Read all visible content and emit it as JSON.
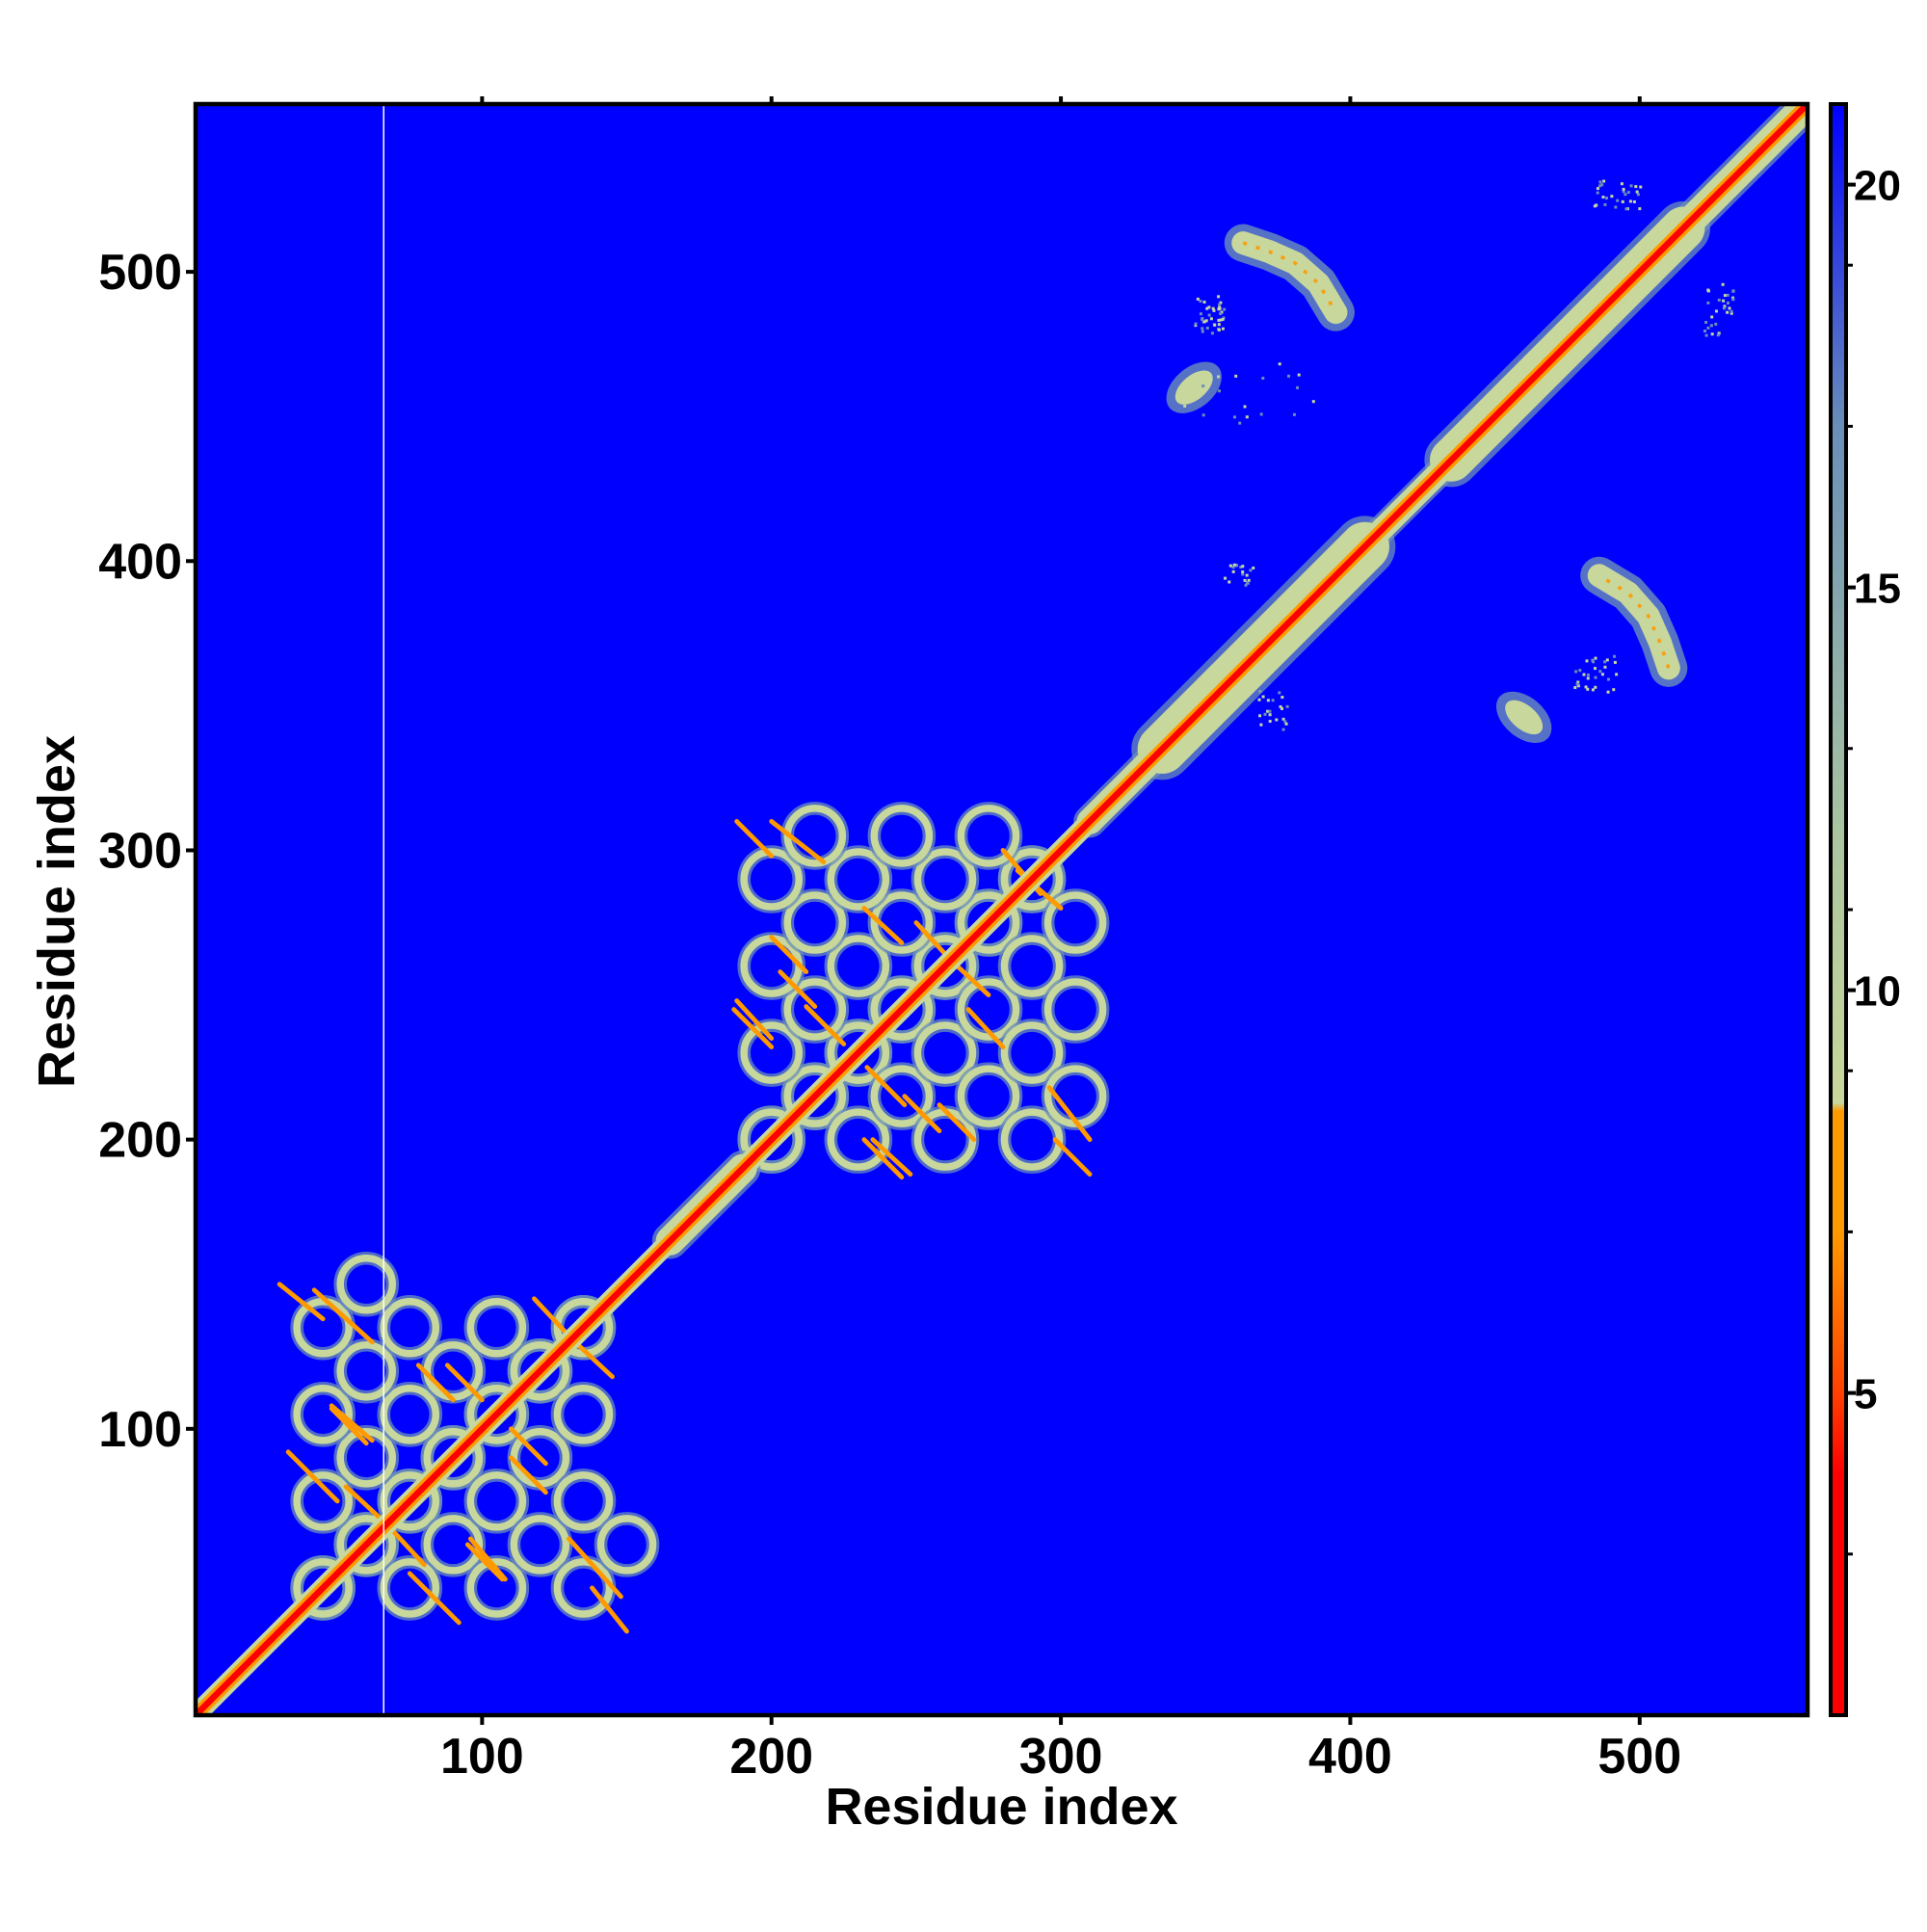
{
  "chart_data": {
    "type": "heatmap",
    "title": "",
    "xlabel": "Residue index",
    "ylabel": "Residue index",
    "xlim": [
      1,
      558
    ],
    "ylim": [
      1,
      558
    ],
    "x_ticks": [
      100,
      200,
      300,
      400,
      500
    ],
    "y_ticks": [
      100,
      200,
      300,
      400,
      500
    ],
    "x_tick_labels": [
      "100",
      "200",
      "300",
      "400",
      "500"
    ],
    "y_tick_labels": [
      "100",
      "200",
      "300",
      "400",
      "500"
    ],
    "colorbar": {
      "range": [
        1,
        21
      ],
      "ticks": [
        5,
        10,
        15,
        20
      ],
      "tick_labels": [
        "5",
        "10",
        "15",
        "20"
      ],
      "colors": {
        "close": "#ff0000",
        "mid": "#ff9900",
        "far_contact": "#c8d79b",
        "edge": "#6a8fb8",
        "background": "#0000ff"
      }
    },
    "regions": [
      {
        "name": "diagonal",
        "from": 1,
        "to": 558
      },
      {
        "name": "domain-1",
        "x": [
          30,
          155
        ],
        "y": [
          30,
          155
        ]
      },
      {
        "name": "domain-2",
        "x": [
          185,
          315
        ],
        "y": [
          180,
          318
        ]
      },
      {
        "name": "block-a",
        "x": [
          335,
          405
        ],
        "y": [
          340,
          405
        ]
      },
      {
        "name": "block-b",
        "x": [
          435,
          515
        ],
        "y": [
          430,
          515
        ]
      },
      {
        "name": "arc-upper-left",
        "x": [
          360,
          400
        ],
        "y": [
          480,
          520
        ]
      },
      {
        "name": "arc-lower-right",
        "x": [
          475,
          520
        ],
        "y": [
          360,
          400
        ]
      },
      {
        "name": "patch-upper-left",
        "x": [
          333,
          358
        ],
        "y": [
          445,
          470
        ]
      },
      {
        "name": "patch-lower-right",
        "x": [
          445,
          470
        ],
        "y": [
          333,
          358
        ]
      },
      {
        "name": "masked-column",
        "x": 66
      }
    ]
  }
}
